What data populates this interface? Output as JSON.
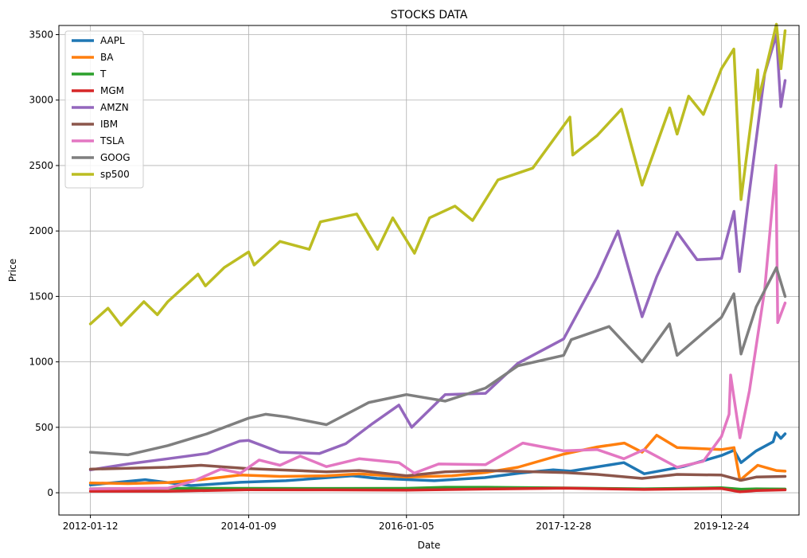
{
  "chart_data": {
    "type": "line",
    "title": "STOCKS DATA",
    "xlabel": "Date",
    "ylabel": "Price",
    "xlim": [
      "2011-08-20",
      "2020-12-15"
    ],
    "ylim": [
      -170,
      3570
    ],
    "x_ticks": [
      "2012-01-12",
      "2014-01-09",
      "2016-01-05",
      "2017-12-28",
      "2019-12-24"
    ],
    "y_ticks": [
      0,
      500,
      1000,
      1500,
      2000,
      2500,
      3000,
      3500
    ],
    "grid": true,
    "legend_position": "upper-left",
    "series": [
      {
        "name": "AAPL",
        "color": "#1f77b4",
        "x": [
          "2012-01-12",
          "2012-09-20",
          "2013-04-19",
          "2013-12-02",
          "2014-06-30",
          "2015-05-01",
          "2015-08-24",
          "2016-05-12",
          "2016-12-30",
          "2017-06-09",
          "2017-11-10",
          "2018-01-29",
          "2018-10-01",
          "2019-01-03",
          "2019-07-01",
          "2019-12-24",
          "2020-02-20",
          "2020-03-23",
          "2020-06-01",
          "2020-08-18",
          "2020-08-31",
          "2020-09-22",
          "2020-10-12"
        ],
        "y": [
          60,
          100,
          55,
          80,
          92,
          130,
          110,
          92,
          116,
          150,
          175,
          165,
          230,
          145,
          200,
          285,
          325,
          230,
          320,
          390,
          460,
          415,
          450
        ]
      },
      {
        "name": "BA",
        "color": "#ff7f0e",
        "x": [
          "2012-01-12",
          "2012-07-02",
          "2013-01-02",
          "2013-06-03",
          "2013-12-02",
          "2014-06-02",
          "2015-01-02",
          "2015-06-01",
          "2016-01-05",
          "2016-08-01",
          "2017-01-03",
          "2017-06-01",
          "2017-12-28",
          "2018-06-01",
          "2018-10-03",
          "2018-12-24",
          "2019-03-01",
          "2019-06-03",
          "2019-12-24",
          "2020-02-20",
          "2020-03-18",
          "2020-04-15",
          "2020-06-08",
          "2020-09-01",
          "2020-10-12"
        ],
        "y": [
          75,
          70,
          78,
          100,
          135,
          125,
          130,
          145,
          120,
          130,
          155,
          195,
          295,
          350,
          380,
          310,
          440,
          345,
          330,
          345,
          95,
          135,
          210,
          170,
          165
        ]
      },
      {
        "name": "T",
        "color": "#2ca02c",
        "x": [
          "2012-01-12",
          "2013-01-02",
          "2014-01-02",
          "2015-01-02",
          "2016-01-05",
          "2016-07-01",
          "2017-01-03",
          "2018-01-02",
          "2019-01-02",
          "2019-12-24",
          "2020-03-23",
          "2020-06-01",
          "2020-10-12"
        ],
        "y": [
          30,
          34,
          34,
          33,
          34,
          42,
          42,
          37,
          30,
          38,
          27,
          30,
          28
        ]
      },
      {
        "name": "MGM",
        "color": "#d62728",
        "x": [
          "2012-01-12",
          "2013-01-02",
          "2014-01-02",
          "2015-01-02",
          "2016-01-05",
          "2017-01-03",
          "2018-01-02",
          "2019-01-02",
          "2019-12-24",
          "2020-03-18",
          "2020-06-01",
          "2020-10-12"
        ],
        "y": [
          12,
          12,
          23,
          22,
          20,
          28,
          35,
          25,
          33,
          7,
          17,
          22
        ]
      },
      {
        "name": "AMZN",
        "color": "#9467bd",
        "x": [
          "2012-01-12",
          "2012-07-02",
          "2013-01-02",
          "2013-07-01",
          "2013-11-29",
          "2014-01-09",
          "2014-06-02",
          "2014-12-01",
          "2015-04-01",
          "2015-08-03",
          "2015-12-01",
          "2016-01-29",
          "2016-07-01",
          "2017-01-03",
          "2017-06-01",
          "2017-12-28",
          "2018-06-01",
          "2018-09-04",
          "2018-12-24",
          "2019-03-01",
          "2019-06-03",
          "2019-09-03",
          "2019-12-24",
          "2020-02-20",
          "2020-03-16",
          "2020-05-01",
          "2020-07-10",
          "2020-09-02",
          "2020-09-22",
          "2020-10-12"
        ],
        "y": [
          175,
          220,
          260,
          300,
          395,
          400,
          310,
          300,
          375,
          530,
          670,
          500,
          750,
          760,
          990,
          1175,
          1650,
          2000,
          1345,
          1650,
          1990,
          1780,
          1790,
          2150,
          1690,
          2300,
          3200,
          3500,
          2950,
          3150
        ]
      },
      {
        "name": "IBM",
        "color": "#8c564b",
        "x": [
          "2012-01-12",
          "2013-01-02",
          "2013-06-03",
          "2014-01-02",
          "2015-01-02",
          "2015-06-01",
          "2016-01-05",
          "2016-07-01",
          "2017-01-03",
          "2017-12-28",
          "2018-06-01",
          "2018-12-24",
          "2019-06-03",
          "2019-12-24",
          "2020-03-23",
          "2020-06-01",
          "2020-10-12"
        ],
        "y": [
          180,
          195,
          210,
          185,
          160,
          170,
          130,
          160,
          170,
          155,
          140,
          110,
          140,
          135,
          95,
          120,
          125
        ]
      },
      {
        "name": "TSLA",
        "color": "#e377c2",
        "x": [
          "2012-01-12",
          "2013-01-02",
          "2013-05-01",
          "2013-09-03",
          "2013-12-02",
          "2014-02-26",
          "2014-06-02",
          "2014-09-03",
          "2015-01-02",
          "2015-06-01",
          "2015-12-01",
          "2016-02-10",
          "2016-06-01",
          "2017-01-03",
          "2017-06-23",
          "2017-12-28",
          "2018-06-01",
          "2018-10-01",
          "2019-01-02",
          "2019-06-03",
          "2019-10-01",
          "2019-12-24",
          "2020-01-28",
          "2020-02-04",
          "2020-03-18",
          "2020-05-01",
          "2020-07-10",
          "2020-08-31",
          "2020-09-08",
          "2020-10-12"
        ],
        "y": [
          30,
          35,
          90,
          180,
          150,
          250,
          210,
          280,
          200,
          260,
          230,
          150,
          220,
          215,
          380,
          320,
          330,
          260,
          330,
          195,
          240,
          430,
          600,
          900,
          420,
          780,
          1550,
          2500,
          1300,
          1450
        ]
      },
      {
        "name": "GOOG",
        "color": "#7f7f7f",
        "x": [
          "2012-01-12",
          "2012-07-02",
          "2013-01-02",
          "2013-07-01",
          "2014-01-09",
          "2014-03-28",
          "2014-07-01",
          "2015-01-02",
          "2015-07-16",
          "2016-01-05",
          "2016-07-01",
          "2017-01-03",
          "2017-06-01",
          "2017-12-28",
          "2018-02-01",
          "2018-07-25",
          "2018-12-24",
          "2019-04-29",
          "2019-06-03",
          "2019-12-24",
          "2020-02-19",
          "2020-03-23",
          "2020-06-01",
          "2020-09-02",
          "2020-10-12"
        ],
        "y": [
          310,
          290,
          360,
          450,
          570,
          600,
          580,
          520,
          690,
          750,
          700,
          800,
          970,
          1050,
          1170,
          1270,
          1000,
          1290,
          1050,
          1340,
          1520,
          1060,
          1420,
          1720,
          1500
        ]
      },
      {
        "name": "sp500",
        "color": "#bcbd22",
        "x": [
          "2012-01-12",
          "2012-04-02",
          "2012-06-01",
          "2012-09-14",
          "2012-11-15",
          "2013-01-02",
          "2013-05-21",
          "2013-06-24",
          "2013-09-18",
          "2014-01-09",
          "2014-02-03",
          "2014-06-02",
          "2014-10-15",
          "2014-12-05",
          "2015-05-21",
          "2015-08-25",
          "2015-11-03",
          "2016-02-11",
          "2016-04-20",
          "2016-08-15",
          "2016-11-04",
          "2017-03-01",
          "2017-08-08",
          "2018-01-26",
          "2018-02-08",
          "2018-06-01",
          "2018-09-20",
          "2018-12-24",
          "2019-04-30",
          "2019-06-03",
          "2019-07-26",
          "2019-10-02",
          "2019-12-24",
          "2020-02-19",
          "2020-03-23",
          "2020-06-08",
          "2020-06-11",
          "2020-09-02",
          "2020-09-23",
          "2020-10-12"
        ],
        "y": [
          1290,
          1410,
          1280,
          1460,
          1360,
          1460,
          1670,
          1580,
          1720,
          1840,
          1740,
          1920,
          1860,
          2070,
          2130,
          1860,
          2100,
          1830,
          2100,
          2190,
          2080,
          2390,
          2480,
          2870,
          2580,
          2730,
          2930,
          2350,
          2940,
          2740,
          3030,
          2890,
          3240,
          3390,
          2240,
          3230,
          3000,
          3580,
          3240,
          3530
        ]
      }
    ]
  }
}
